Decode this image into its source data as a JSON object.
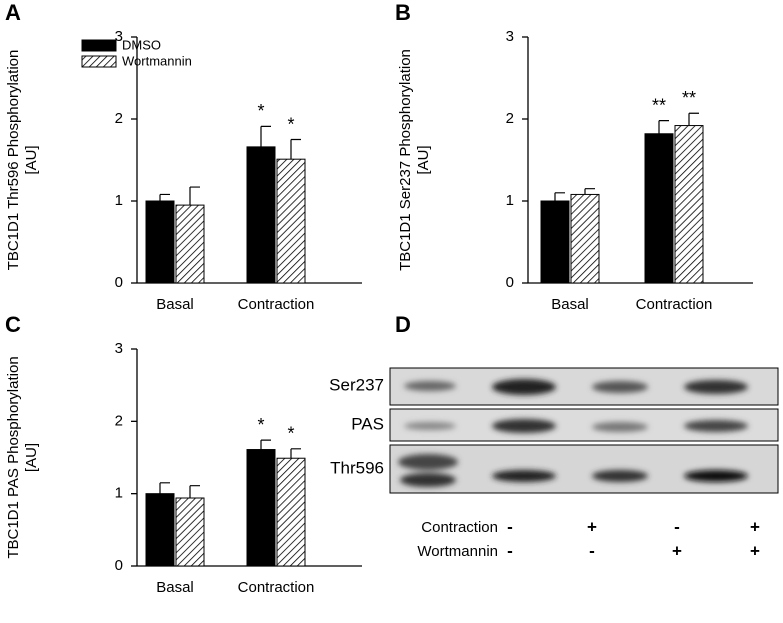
{
  "chart_data": [
    {
      "type": "bar",
      "panel": "A",
      "ylabel": [
        "TBC1D1 Thr596 Phosphorylation",
        "[AU]"
      ],
      "categories": [
        "Basal",
        "Contraction"
      ],
      "ylim": [
        0,
        3
      ],
      "yticks": [
        0,
        1,
        2,
        3
      ],
      "legend": "top-left",
      "series": [
        {
          "name": "DMSO",
          "color": "#000000",
          "pattern": "solid",
          "values": [
            1.0,
            1.66
          ],
          "errors": [
            0.08,
            0.25
          ],
          "stars": [
            null,
            "*"
          ]
        },
        {
          "name": "Wortmannin",
          "color": "#000000",
          "pattern": "hatch",
          "values": [
            0.95,
            1.51
          ],
          "errors": [
            0.22,
            0.24
          ],
          "stars": [
            null,
            "*"
          ]
        }
      ]
    },
    {
      "type": "bar",
      "panel": "B",
      "ylabel": [
        "TBC1D1 Ser237 Phosphorylation",
        "[AU]"
      ],
      "categories": [
        "Basal",
        "Contraction"
      ],
      "ylim": [
        0,
        3
      ],
      "yticks": [
        0,
        1,
        2,
        3
      ],
      "series": [
        {
          "color": "#000000",
          "pattern": "solid",
          "values": [
            1.0,
            1.82
          ],
          "errors": [
            0.1,
            0.16
          ],
          "stars": [
            null,
            "**"
          ]
        },
        {
          "color": "#000000",
          "pattern": "hatch",
          "values": [
            1.08,
            1.92
          ],
          "errors": [
            0.07,
            0.15
          ],
          "stars": [
            null,
            "**"
          ]
        }
      ]
    },
    {
      "type": "bar",
      "panel": "C",
      "ylabel": [
        "TBC1D1 PAS Phosphorylation",
        "[AU]"
      ],
      "categories": [
        "Basal",
        "Contraction"
      ],
      "ylim": [
        0,
        3
      ],
      "yticks": [
        0,
        1,
        2,
        3
      ],
      "series": [
        {
          "color": "#000000",
          "pattern": "solid",
          "values": [
            1.0,
            1.61
          ],
          "errors": [
            0.15,
            0.13
          ],
          "stars": [
            null,
            "*"
          ]
        },
        {
          "color": "#000000",
          "pattern": "hatch",
          "values": [
            0.94,
            1.49
          ],
          "errors": [
            0.17,
            0.13
          ],
          "stars": [
            null,
            "*"
          ]
        }
      ]
    }
  ],
  "blot": {
    "panel": "D",
    "rows": [
      "Ser237",
      "PAS",
      "Thr596"
    ],
    "conditions": [
      {
        "label": "Contraction",
        "signs": [
          "-",
          "+",
          "-",
          "+"
        ]
      },
      {
        "label": "Wortmannin",
        "signs": [
          "-",
          "-",
          "+",
          "+"
        ]
      }
    ]
  }
}
